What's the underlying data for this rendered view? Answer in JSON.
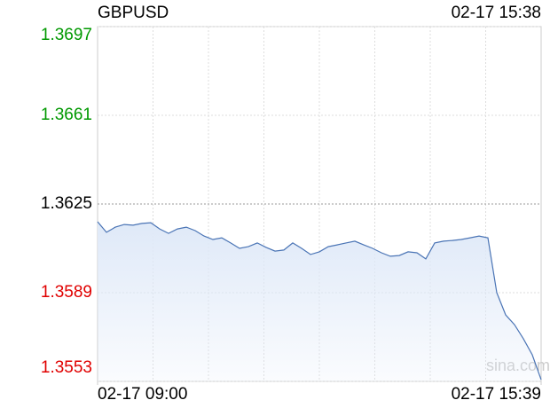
{
  "chart_data": {
    "type": "line",
    "title": "GBPUSD",
    "timestamp": "02-17 15:38",
    "watermark": "sina.com",
    "series": [
      {
        "name": "GBPUSD",
        "color": "#4a74b5",
        "values": [
          1.36178,
          1.36135,
          1.36156,
          1.36167,
          1.36164,
          1.36171,
          1.36174,
          1.36149,
          1.36131,
          1.36149,
          1.36156,
          1.36142,
          1.3612,
          1.36106,
          1.36113,
          1.36092,
          1.3607,
          1.36077,
          1.36092,
          1.36074,
          1.36059,
          1.36063,
          1.36092,
          1.3607,
          1.36045,
          1.36056,
          1.36077,
          1.36084,
          1.36092,
          1.36099,
          1.36084,
          1.3607,
          1.36052,
          1.36038,
          1.36041,
          1.36056,
          1.36052,
          1.36027,
          1.36092,
          1.36099,
          1.36102,
          1.36106,
          1.36113,
          1.3612,
          1.36113,
          1.3589,
          1.358,
          1.3576,
          1.35703,
          1.35638,
          1.35537
        ]
      }
    ],
    "xticks": [
      {
        "value": 0,
        "label": "02-17 09:00"
      },
      {
        "value": 50,
        "label": "02-17 15:39"
      }
    ],
    "xlim": [
      0,
      50
    ],
    "ylim": [
      1.3553,
      1.3697
    ],
    "yticks": [
      1.3553,
      1.3589,
      1.3625,
      1.3661,
      1.3697
    ],
    "up_color": "#009900",
    "down_color": "#e00000",
    "flat_color": "#000000",
    "fill_color": "#dfe9f8",
    "grid": true
  }
}
